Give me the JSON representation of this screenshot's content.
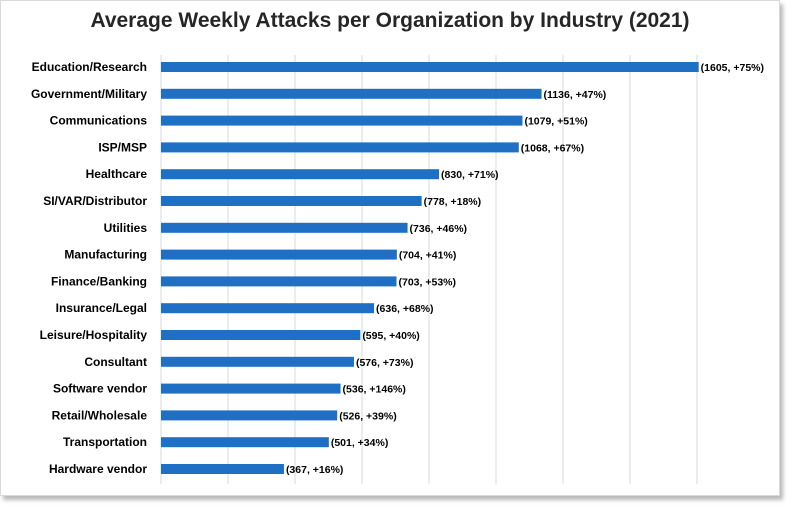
{
  "chart_data": {
    "type": "bar",
    "orientation": "horizontal",
    "title": "Average Weekly Attacks per Organization by Industry (2021)",
    "xlabel": "",
    "ylabel": "",
    "grid": true,
    "legend": "none",
    "xlim": [
      0,
      1600
    ],
    "bar_color": "#1f6fc4",
    "categories": [
      "Education/Research",
      "Government/Military",
      "Communications",
      "ISP/MSP",
      "Healthcare",
      "SI/VAR/Distributor",
      "Utilities",
      "Manufacturing",
      "Finance/Banking",
      "Insurance/Legal",
      "Leisure/Hospitality",
      "Consultant",
      "Software vendor",
      "Retail/Wholesale",
      "Transportation",
      "Hardware vendor"
    ],
    "values": [
      1605,
      1136,
      1079,
      1068,
      830,
      778,
      736,
      704,
      703,
      636,
      595,
      576,
      536,
      526,
      501,
      367
    ],
    "data_labels": [
      "(1605, +75%)",
      "(1136, +47%)",
      "(1079, +51%)",
      "(1068, +67%)",
      "(830, +71%)",
      "(778, +18%)",
      "(736, +46%)",
      "(704, +41%)",
      "(703, +53%)",
      "(636, +68%)",
      "(595, +40%)",
      "(576, +73%)",
      "(536, +146%)",
      "(526, +39%)",
      "(501, +34%)",
      "(367, +16%)"
    ]
  }
}
